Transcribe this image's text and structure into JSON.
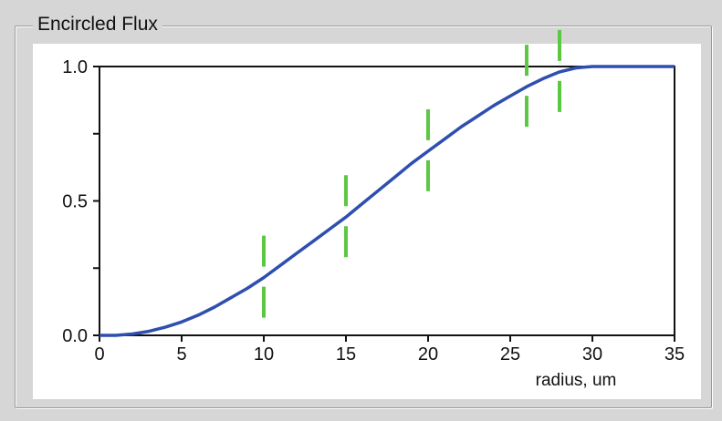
{
  "group": {
    "title": "Encircled Flux"
  },
  "chart_data": {
    "type": "line",
    "title": "",
    "xlabel": "radius, um",
    "ylabel": "",
    "xlim": [
      0,
      35
    ],
    "ylim": [
      0,
      1.0
    ],
    "x_ticks": [
      "0",
      "5",
      "10",
      "15",
      "20",
      "25",
      "30",
      "35"
    ],
    "y_ticks": [
      "0.0",
      "0.5",
      "1.0"
    ],
    "y_minor_ticks": [
      0.25,
      0.75
    ],
    "grid": false,
    "series": [
      {
        "color": "#2e4fb0",
        "x": [
          0,
          1,
          2,
          3,
          4,
          5,
          6,
          7,
          8,
          9,
          10,
          11,
          12,
          13,
          14,
          15,
          16,
          17,
          18,
          19,
          20,
          21,
          22,
          23,
          24,
          25,
          26,
          27,
          28,
          29,
          30,
          31,
          32,
          33,
          34,
          35
        ],
        "y": [
          0.0,
          0.0,
          0.005,
          0.015,
          0.03,
          0.05,
          0.075,
          0.105,
          0.14,
          0.175,
          0.215,
          0.26,
          0.305,
          0.35,
          0.395,
          0.44,
          0.49,
          0.54,
          0.59,
          0.64,
          0.685,
          0.73,
          0.775,
          0.815,
          0.855,
          0.89,
          0.925,
          0.955,
          0.98,
          0.995,
          1.0,
          1.0,
          1.0,
          1.0,
          1.0,
          1.0
        ]
      }
    ],
    "markers": {
      "color": "#5cc842",
      "x": [
        10,
        15,
        20,
        26,
        28
      ]
    }
  }
}
